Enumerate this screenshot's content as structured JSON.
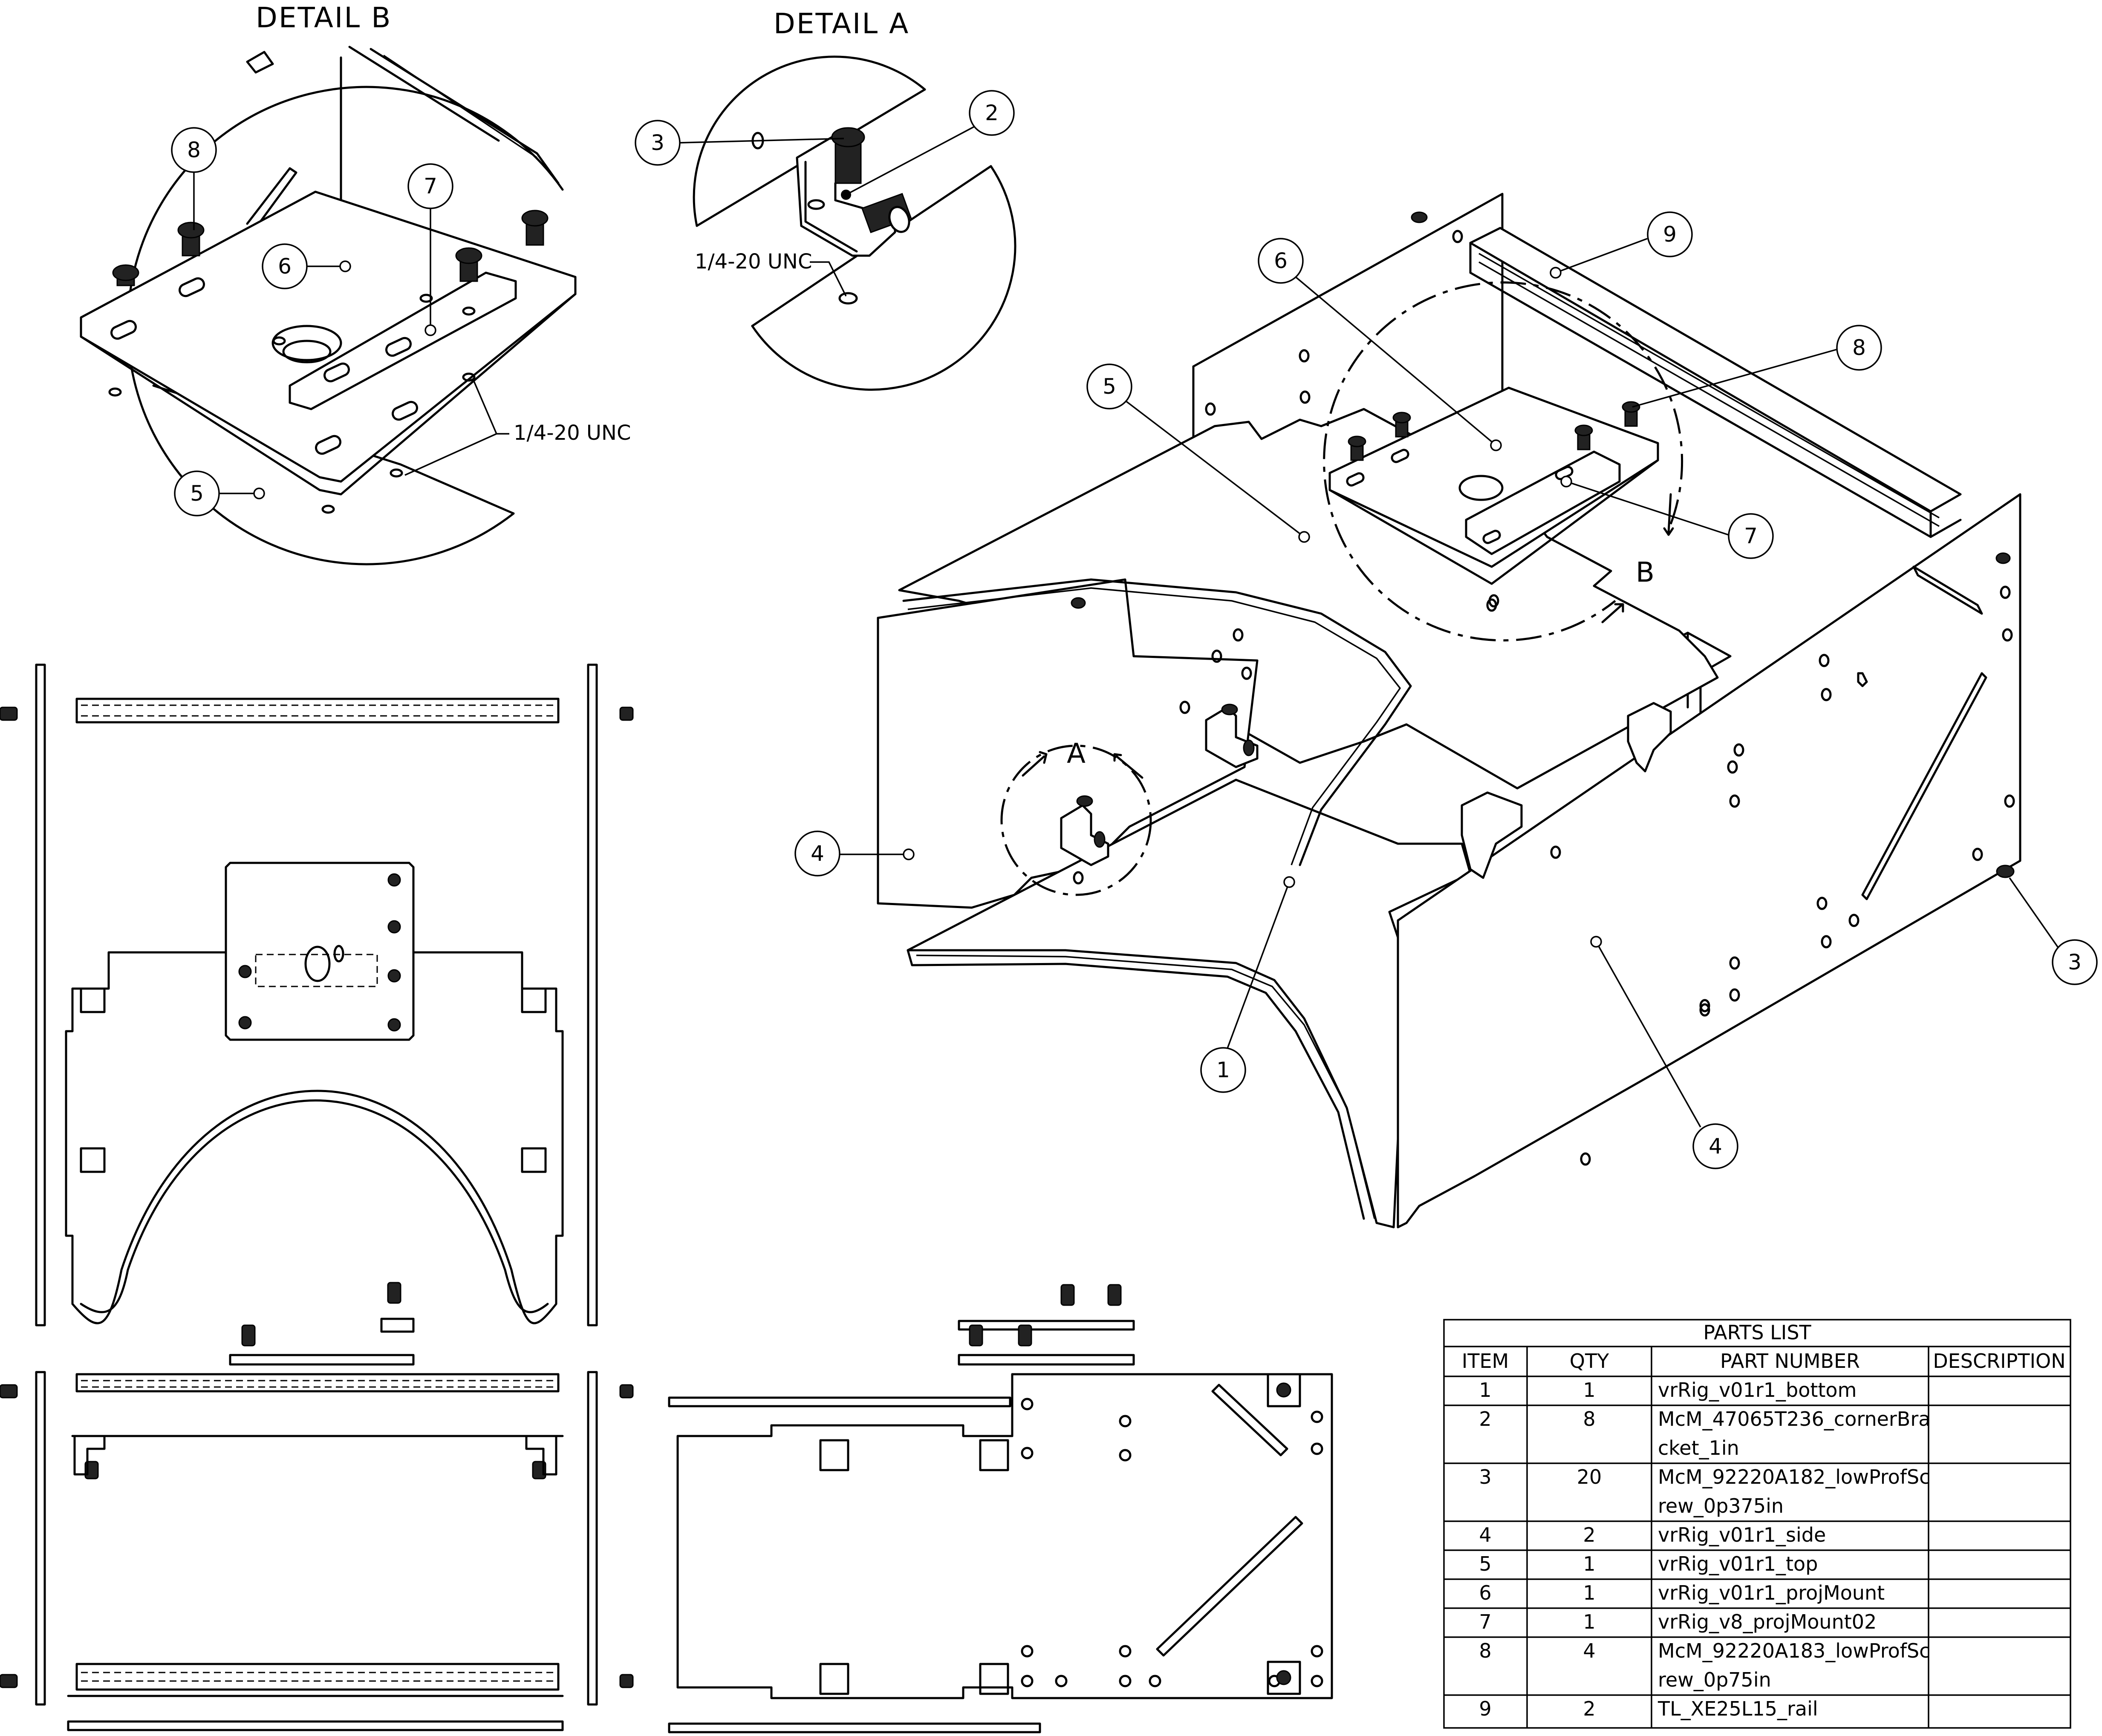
{
  "detail_b": {
    "title": "DETAIL  B",
    "note": "1/4-20 UNC",
    "balloons": [
      "8",
      "7",
      "6",
      "5"
    ]
  },
  "detail_a": {
    "title": "DETAIL  A",
    "note": "1/4-20 UNC",
    "balloons": [
      "3",
      "2"
    ]
  },
  "iso_view": {
    "section_label_a": "A",
    "section_label_b": "B",
    "balloons": [
      "9",
      "6",
      "8",
      "5",
      "7",
      "4",
      "1",
      "3",
      "4"
    ]
  },
  "parts_list": {
    "title": "PARTS LIST",
    "headers": [
      "ITEM",
      "QTY",
      "PART NUMBER",
      "DESCRIPTION"
    ],
    "rows": [
      {
        "item": "1",
        "qty": "1",
        "part": [
          "vrRig_v01r1_bottom"
        ],
        "desc": ""
      },
      {
        "item": "2",
        "qty": "8",
        "part": [
          "McM_47065T236_cornerBra",
          "cket_1in"
        ],
        "desc": ""
      },
      {
        "item": "3",
        "qty": "20",
        "part": [
          "McM_92220A182_lowProfSc",
          "rew_0p375in"
        ],
        "desc": ""
      },
      {
        "item": "4",
        "qty": "2",
        "part": [
          "vrRig_v01r1_side"
        ],
        "desc": ""
      },
      {
        "item": "5",
        "qty": "1",
        "part": [
          "vrRig_v01r1_top"
        ],
        "desc": ""
      },
      {
        "item": "6",
        "qty": "1",
        "part": [
          "vrRig_v01r1_projMount"
        ],
        "desc": ""
      },
      {
        "item": "7",
        "qty": "1",
        "part": [
          "vrRig_v8_projMount02"
        ],
        "desc": ""
      },
      {
        "item": "8",
        "qty": "4",
        "part": [
          "McM_92220A183_lowProfSc",
          "rew_0p75in"
        ],
        "desc": ""
      },
      {
        "item": "9",
        "qty": "2",
        "part": [
          "TL_XE25L15_rail"
        ],
        "desc": ""
      }
    ]
  }
}
